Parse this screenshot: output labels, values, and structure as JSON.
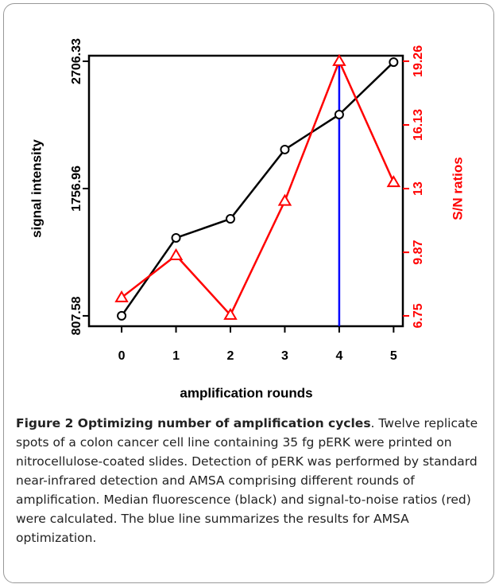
{
  "chart_data": {
    "type": "line",
    "xlabel": "amplification rounds",
    "ylabel": "signal intensity",
    "y2label": "S/N ratios",
    "x": [
      0,
      1,
      2,
      3,
      4,
      5
    ],
    "series": [
      {
        "name": "signal intensity",
        "color": "#000000",
        "marker": "circle",
        "values": [
          807.58,
          1389,
          1531,
          2048,
          2309,
          2700
        ]
      },
      {
        "name": "S/N ratios",
        "color": "#ff0000",
        "marker": "triangle",
        "axis": "y2",
        "values": [
          7.65,
          9.72,
          6.79,
          12.39,
          19.26,
          13.31
        ]
      }
    ],
    "vline": {
      "x": 4,
      "color": "#0000ff"
    },
    "xlim": [
      -0.6,
      5.17
    ],
    "xticks": [
      0,
      1,
      2,
      3,
      4,
      5
    ],
    "ylim": [
      730,
      2748
    ],
    "yticks": [
      807.58,
      1756.96,
      2706.33
    ],
    "y2lim": [
      6.24,
      19.53
    ],
    "y2ticks": [
      6.75,
      9.87,
      13,
      16.13,
      19.26
    ]
  },
  "caption": {
    "title": "Figure 2 Optimizing number of amplification cycles",
    "body": ". Twelve replicate spots of a colon cancer cell line containing 35 fg pERK were printed on nitrocellulose-coated slides. Detection of pERK was performed by standard near-infrared detection and AMSA comprising different rounds of amplification. Median fluorescence (black) and signal-to-noise ratios (red) were calculated. The blue line summarizes the results for AMSA optimization."
  }
}
